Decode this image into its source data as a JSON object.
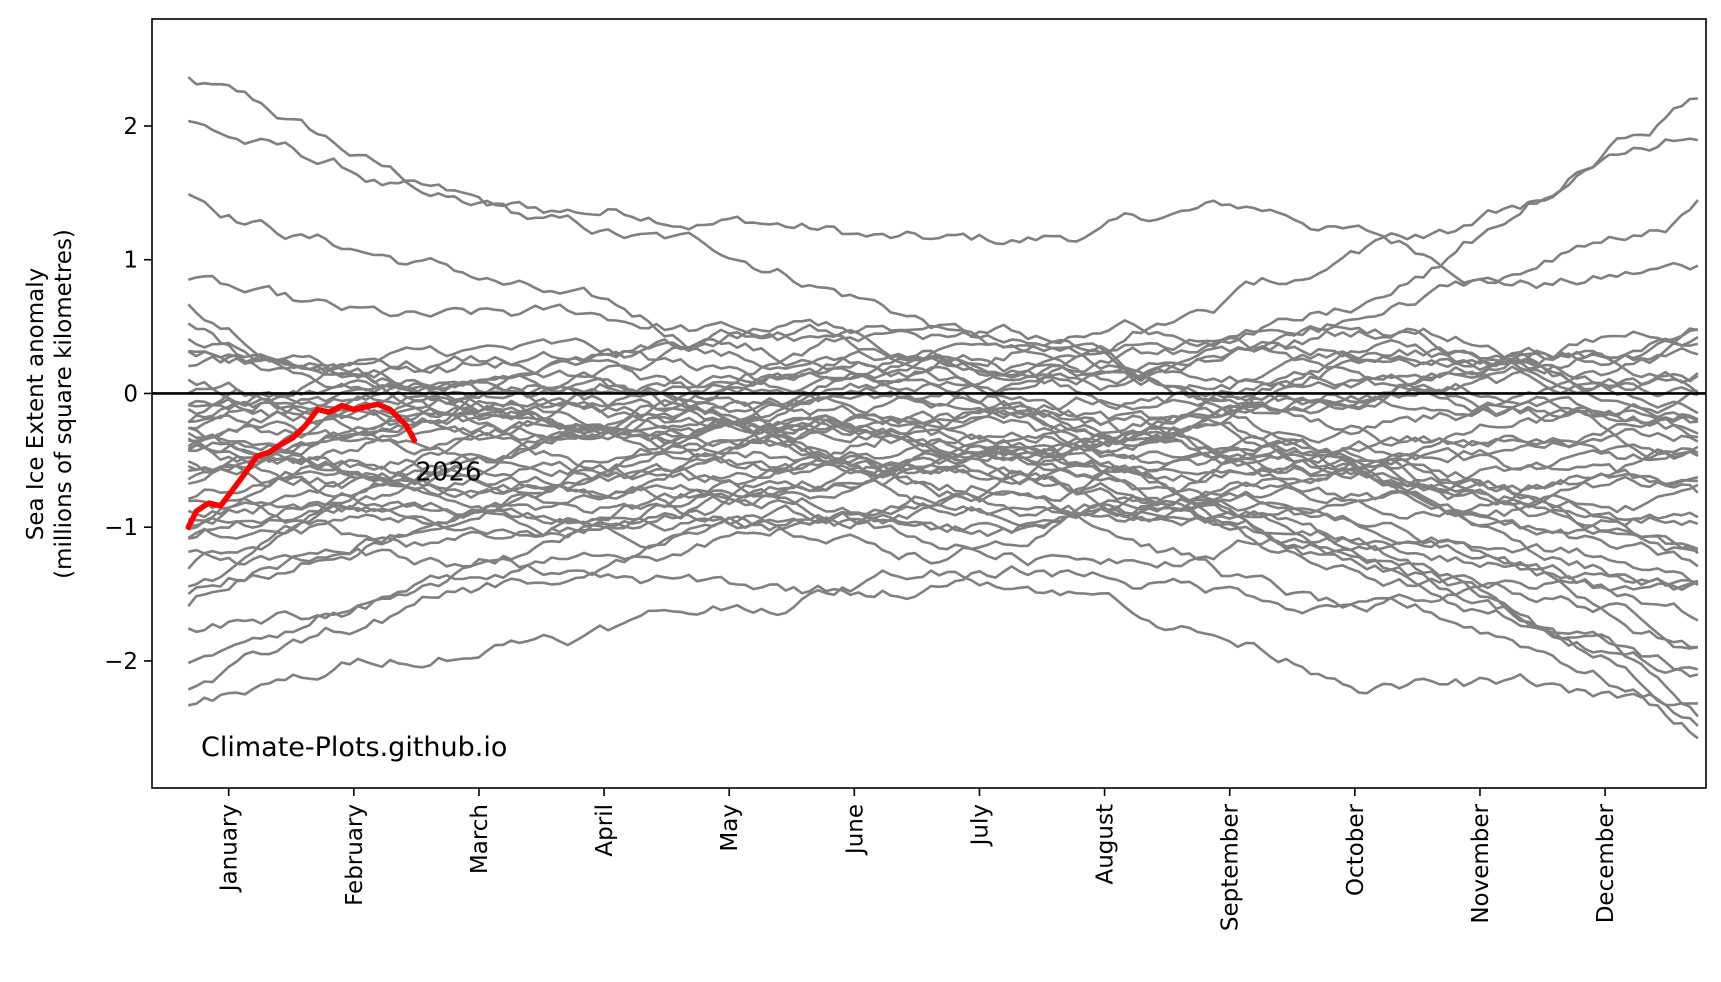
{
  "chart_data": {
    "type": "line",
    "title": "",
    "xlabel": "",
    "ylabel": "Sea Ice Extent anomaly\n(millions of square kilometres)",
    "ylim": [
      -2.95,
      2.8
    ],
    "yticks": [
      -2,
      -1,
      0,
      1,
      2
    ],
    "ytick_labels": [
      "−2",
      "−1",
      "0",
      "1",
      "2"
    ],
    "xlim": [
      -19,
      366
    ],
    "xticks": [
      {
        "label": "January",
        "day": 0
      },
      {
        "label": "February",
        "day": 31
      },
      {
        "label": "March",
        "day": 62
      },
      {
        "label": "April",
        "day": 93
      },
      {
        "label": "May",
        "day": 124
      },
      {
        "label": "June",
        "day": 155
      },
      {
        "label": "July",
        "day": 186
      },
      {
        "label": "August",
        "day": 217
      },
      {
        "label": "September",
        "day": 248
      },
      {
        "label": "October",
        "day": 279
      },
      {
        "label": "November",
        "day": 310
      },
      {
        "label": "December",
        "day": 341
      }
    ],
    "zero_line": 0,
    "watermark": "Climate-Plots.github.io",
    "colors": {
      "history": "#808080",
      "current": "#ff0000",
      "zero": "#000000",
      "axes": "#000000"
    },
    "history_series_count": 48,
    "history_start_values": [
      2.35,
      2.02,
      1.5,
      0.85,
      0.7,
      0.55,
      0.45,
      0.35,
      0.3,
      0.2,
      0.1,
      0.0,
      -0.05,
      -0.1,
      -0.15,
      -0.2,
      -0.22,
      -0.25,
      -0.28,
      -0.3,
      -0.32,
      -0.35,
      -0.38,
      -0.4,
      -0.42,
      -0.45,
      -0.5,
      -0.55,
      -0.6,
      -0.65,
      -0.7,
      -0.75,
      -0.8,
      -0.85,
      -0.9,
      -0.95,
      -1.0,
      -1.05,
      -1.1,
      -1.2,
      -1.3,
      -1.4,
      -1.5,
      -1.55,
      -1.78,
      -2.0,
      -2.2,
      -2.35
    ],
    "history_end_values": [
      2.2,
      1.95,
      1.4,
      0.95,
      0.6,
      0.5,
      0.4,
      0.35,
      0.3,
      0.2,
      0.15,
      0.1,
      0.05,
      0.0,
      -0.05,
      -0.1,
      -0.15,
      -0.2,
      -0.25,
      -0.3,
      -0.35,
      -0.4,
      -0.45,
      -0.5,
      -0.55,
      -0.6,
      -0.7,
      -0.8,
      -0.9,
      -1.0,
      -1.1,
      -1.2,
      -1.3,
      -1.4,
      -1.45,
      -1.5,
      -1.6,
      -1.7,
      -1.8,
      -1.9,
      -2.0,
      -2.1,
      -2.2,
      -2.3,
      -2.4,
      -2.5,
      -1.45,
      -0.75
    ],
    "current_series": {
      "name": "2026",
      "x": [
        -10,
        -8,
        -5,
        -2,
        1,
        4,
        7,
        10,
        13,
        16,
        19,
        22,
        25,
        28,
        31,
        34,
        37,
        40,
        44,
        46
      ],
      "y": [
        -1.0,
        -0.88,
        -0.82,
        -0.84,
        -0.72,
        -0.6,
        -0.47,
        -0.44,
        -0.38,
        -0.33,
        -0.24,
        -0.12,
        -0.14,
        -0.09,
        -0.12,
        -0.1,
        -0.08,
        -0.12,
        -0.24,
        -0.35
      ]
    }
  }
}
